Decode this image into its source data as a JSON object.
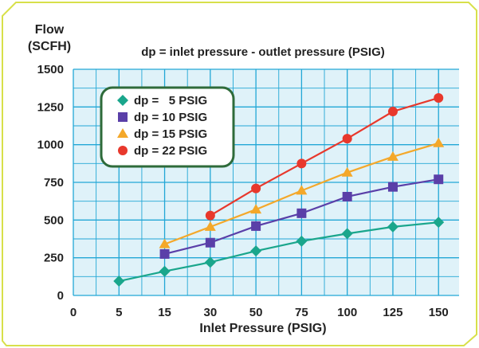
{
  "chart_data": {
    "type": "line",
    "title": "dp = inlet pressure - outlet pressure (PSIG)",
    "ylabel_line1": "Flow",
    "ylabel_line2": "(SCFH)",
    "xlabel": "Inlet Pressure (PSIG)",
    "categories": [
      "0",
      "5",
      "15",
      "30",
      "50",
      "75",
      "100",
      "125",
      "150"
    ],
    "y_ticks": [
      "0",
      "250",
      "500",
      "750",
      "1000",
      "1250",
      "1500"
    ],
    "ylim": [
      0,
      1500
    ],
    "grid": true,
    "legend_position": "top-left",
    "series": [
      {
        "name": "dp =   5 PSIG",
        "marker": "diamond",
        "color": "#1aa68c",
        "values": [
          null,
          95,
          160,
          220,
          295,
          360,
          410,
          455,
          485
        ]
      },
      {
        "name": "dp = 10 PSIG",
        "marker": "square",
        "color": "#5a3fa8",
        "values": [
          null,
          null,
          275,
          350,
          460,
          545,
          655,
          720,
          770
        ]
      },
      {
        "name": "dp = 15 PSIG",
        "marker": "triangle",
        "color": "#f4a82a",
        "values": [
          null,
          null,
          340,
          455,
          570,
          695,
          815,
          920,
          1010
        ]
      },
      {
        "name": "dp = 22 PSIG",
        "marker": "circle",
        "color": "#e8382c",
        "values": [
          null,
          null,
          null,
          530,
          710,
          875,
          1040,
          1220,
          1310
        ]
      }
    ]
  },
  "colors": {
    "background": "#ffffff",
    "frame_border": "#d8e04a",
    "plot_area": "#dff2f9",
    "grid": "#22a7d6",
    "legend_border": "#2e6b3a"
  }
}
